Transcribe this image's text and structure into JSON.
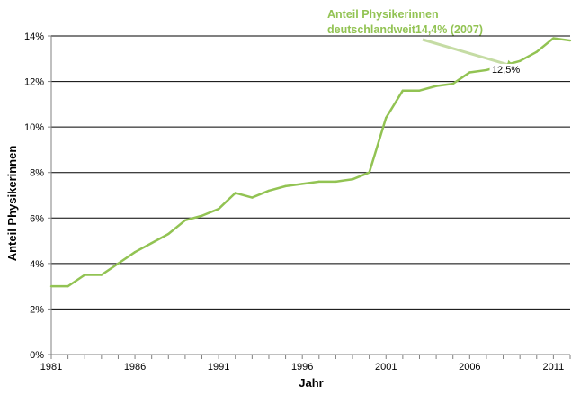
{
  "chart_data": {
    "type": "line",
    "title": "",
    "xlabel": "Jahr",
    "ylabel": "Anteil Physikerinnen",
    "ylim": [
      0,
      14
    ],
    "xlim": [
      1981,
      2012
    ],
    "grid": "horizontal",
    "y_ticks": [
      0,
      2,
      4,
      6,
      8,
      10,
      12,
      14
    ],
    "y_tick_labels": [
      "0%",
      "2%",
      "4%",
      "6%",
      "8%",
      "10%",
      "12%",
      "14%"
    ],
    "x_ticks": [
      1981,
      1986,
      1991,
      1996,
      2001,
      2006,
      2011
    ],
    "x_tick_labels": [
      "1981",
      "1986",
      "1991",
      "1996",
      "2001",
      "2006",
      "2011"
    ],
    "series": [
      {
        "name": "Anteil Physikerinnen",
        "color": "#92c353",
        "x": [
          1981,
          1982,
          1983,
          1984,
          1985,
          1986,
          1987,
          1988,
          1989,
          1990,
          1991,
          1992,
          1993,
          1994,
          1995,
          1996,
          1997,
          1998,
          1999,
          2000,
          2001,
          2002,
          2003,
          2004,
          2005,
          2006,
          2007,
          2008,
          2009,
          2010,
          2011,
          2012
        ],
        "values": [
          3.0,
          3.0,
          3.5,
          3.5,
          4.0,
          4.5,
          4.9,
          5.3,
          5.9,
          6.1,
          6.4,
          7.1,
          6.9,
          7.2,
          7.4,
          7.5,
          7.6,
          7.6,
          7.7,
          8.0,
          10.4,
          11.6,
          11.6,
          11.8,
          11.9,
          12.4,
          12.5,
          12.7,
          12.9,
          13.3,
          13.9,
          13.8
        ]
      }
    ],
    "annotations": [
      {
        "text_line1": "Anteil Physikerinnen",
        "text_line2": "deutschlandweit14,4% (2007)",
        "color": "#92c353",
        "arrow_to_year": 2008.7,
        "arrow_to_value": 12.65
      },
      {
        "text": "12,5%",
        "year": 2008,
        "value": 12.5
      }
    ],
    "gridline_color": "#000000",
    "axis_color": "#808080"
  }
}
